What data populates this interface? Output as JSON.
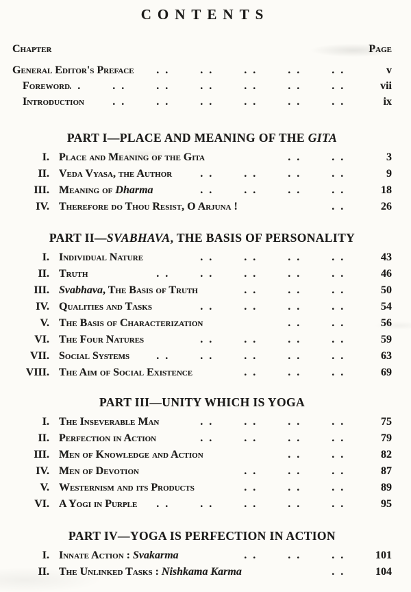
{
  "page_title": "CONTENTS",
  "columns": {
    "chapter": "Chapter",
    "page": "Page"
  },
  "dot_glyph": ". .",
  "front_matter": [
    {
      "label": "General Editor's Preface",
      "indent": 0,
      "dots": 5,
      "page": "v"
    },
    {
      "label": "Foreword",
      "indent": 1,
      "dots": 7,
      "page": "vii"
    },
    {
      "label": "Introduction",
      "indent": 1,
      "dots": 6,
      "page": "ix"
    }
  ],
  "parts": [
    {
      "heading": [
        {
          "t": "PART I—PLACE AND MEANING OF THE ",
          "i": false
        },
        {
          "t": "GITA",
          "i": true
        }
      ],
      "entries": [
        {
          "num": "I.",
          "title": [
            {
              "t": "Place and Meaning of the Gita",
              "i": false
            }
          ],
          "dots": 2,
          "page": "3"
        },
        {
          "num": "II.",
          "title": [
            {
              "t": "Veda Vyasa, the Author",
              "i": false
            }
          ],
          "dots": 4,
          "page": "9"
        },
        {
          "num": "III.",
          "title": [
            {
              "t": "Meaning of ",
              "i": false
            },
            {
              "t": "Dharma",
              "i": true
            }
          ],
          "dots": 4,
          "page": "18"
        },
        {
          "num": "IV.",
          "title": [
            {
              "t": "Therefore do Thou Resist, O Arjuna !",
              "i": false
            }
          ],
          "dots": 1,
          "page": "26"
        }
      ]
    },
    {
      "heading": [
        {
          "t": "PART II—",
          "i": false
        },
        {
          "t": "SVABHAVA",
          "i": true
        },
        {
          "t": ", THE BASIS OF PERSONALITY",
          "i": false
        }
      ],
      "entries": [
        {
          "num": "I.",
          "title": [
            {
              "t": "Individual Nature",
              "i": false
            }
          ],
          "dots": 4,
          "page": "43"
        },
        {
          "num": "II.",
          "title": [
            {
              "t": "Truth",
              "i": false
            }
          ],
          "dots": 5,
          "page": "46"
        },
        {
          "num": "III.",
          "title": [
            {
              "t": "Svabhava",
              "i": true
            },
            {
              "t": ", The Basis of Truth",
              "i": false
            }
          ],
          "dots": 3,
          "page": "50"
        },
        {
          "num": "IV.",
          "title": [
            {
              "t": "Qualities and Tasks",
              "i": false
            }
          ],
          "dots": 4,
          "page": "54"
        },
        {
          "num": "V.",
          "title": [
            {
              "t": "The Basis of Characterization",
              "i": false
            }
          ],
          "dots": 2,
          "page": "56"
        },
        {
          "num": "VI.",
          "title": [
            {
              "t": "The Four Natures",
              "i": false
            }
          ],
          "dots": 4,
          "page": "59"
        },
        {
          "num": "VII.",
          "title": [
            {
              "t": "Social Systems",
              "i": false
            }
          ],
          "dots": 5,
          "page": "63"
        },
        {
          "num": "VIII.",
          "title": [
            {
              "t": "The Aim of Social Existence",
              "i": false
            }
          ],
          "dots": 3,
          "page": "69"
        }
      ]
    },
    {
      "heading": [
        {
          "t": "PART III—UNITY WHICH IS YOGA",
          "i": false
        }
      ],
      "entries": [
        {
          "num": "I.",
          "title": [
            {
              "t": "The Inseverable Man",
              "i": false
            }
          ],
          "dots": 4,
          "page": "75"
        },
        {
          "num": "II.",
          "title": [
            {
              "t": "Perfection in Action",
              "i": false
            }
          ],
          "dots": 4,
          "page": "79"
        },
        {
          "num": "III.",
          "title": [
            {
              "t": "Men of Knowledge and Action",
              "i": false
            }
          ],
          "dots": 2,
          "page": "82"
        },
        {
          "num": "IV.",
          "title": [
            {
              "t": "Men of Devotion",
              "i": false
            }
          ],
          "dots": 3,
          "page": "87"
        },
        {
          "num": "V.",
          "title": [
            {
              "t": "Westernism and its Products",
              "i": false
            }
          ],
          "dots": 3,
          "page": "89"
        },
        {
          "num": "VI.",
          "title": [
            {
              "t": "A Yogi in Purple",
              "i": false
            }
          ],
          "dots": 5,
          "page": "95"
        }
      ]
    },
    {
      "heading": [
        {
          "t": "PART IV—YOGA IS PERFECTION IN ACTION",
          "i": false
        }
      ],
      "entries": [
        {
          "num": "I.",
          "title": [
            {
              "t": "Innate Action : ",
              "i": false
            },
            {
              "t": "Svakarma",
              "i": true
            }
          ],
          "dots": 3,
          "page": "101"
        },
        {
          "num": "II.",
          "title": [
            {
              "t": "The Unlinked Tasks : ",
              "i": false
            },
            {
              "t": "Nishkama Karma",
              "i": true
            }
          ],
          "dots": 1,
          "page": "104"
        }
      ]
    }
  ]
}
